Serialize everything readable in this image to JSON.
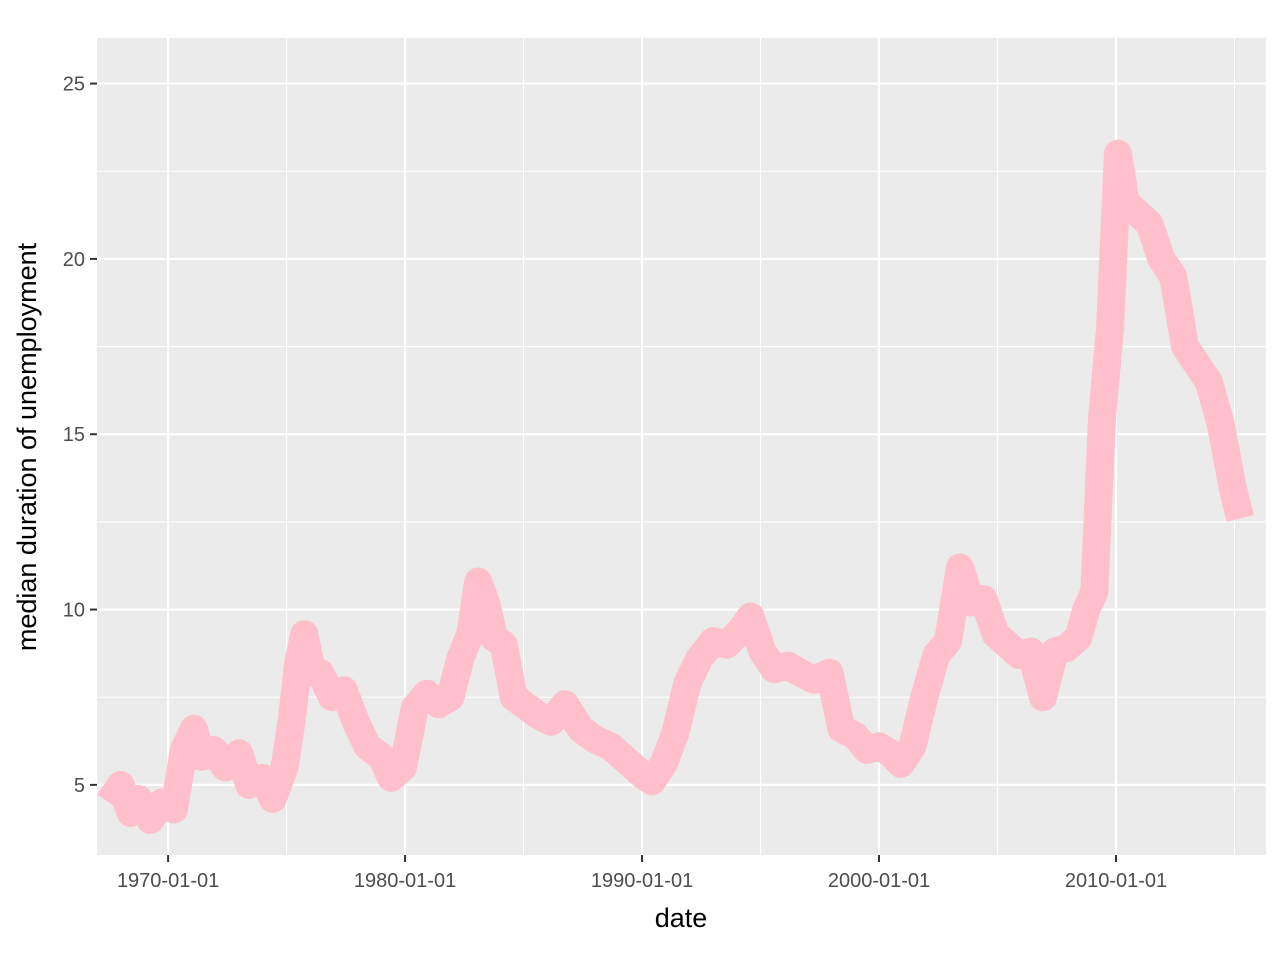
{
  "chart_data": {
    "type": "line",
    "xlabel": "date",
    "ylabel": "median duration of unemployment",
    "x_ticks": [
      "1970-01-01",
      "1980-01-01",
      "1990-01-01",
      "2000-01-01",
      "2010-01-01"
    ],
    "y_ticks": [
      "5",
      "10",
      "15",
      "20",
      "25"
    ],
    "xlim": [
      "1967-01-01",
      "2016-05-01"
    ],
    "ylim": [
      3,
      26.3
    ],
    "grid": true,
    "panel_background": "#ebebeb",
    "grid_color": "#ffffff",
    "line_color": "#ffc0cb",
    "series": [
      {
        "x": [
          "1967-07-01",
          "1968-01-01",
          "1968-06-01",
          "1968-10-01",
          "1969-04-01",
          "1969-10-01",
          "1970-04-01",
          "1970-09-01",
          "1971-02-01",
          "1971-06-01",
          "1971-12-01",
          "1972-06-01",
          "1973-01-01",
          "1973-06-01",
          "1974-01-01",
          "1974-06-01",
          "1974-12-01",
          "1975-04-01",
          "1975-07-01",
          "1975-10-01",
          "1976-02-01",
          "1976-06-01",
          "1976-12-01",
          "1977-06-01",
          "1977-12-01",
          "1978-06-01",
          "1979-01-01",
          "1979-06-01",
          "1979-12-01",
          "1980-06-01",
          "1980-12-01",
          "1981-06-01",
          "1981-12-01",
          "1982-05-01",
          "1982-10-01",
          "1983-02-01",
          "1983-06-01",
          "1983-10-01",
          "1984-03-01",
          "1984-08-01",
          "1985-01-01",
          "1985-08-01",
          "1986-03-01",
          "1986-10-01",
          "1987-06-01",
          "1988-01-01",
          "1988-09-01",
          "1989-05-01",
          "1990-01-01",
          "1990-06-01",
          "1990-12-01",
          "1991-06-01",
          "1991-12-01",
          "1992-06-01",
          "1993-01-01",
          "1993-08-01",
          "1994-03-01",
          "1994-08-01",
          "1995-02-01",
          "1995-08-01",
          "1996-03-01",
          "1996-09-01",
          "1997-04-01",
          "1997-12-01",
          "1998-06-01",
          "1999-01-01",
          "1999-07-01",
          "2000-01-01",
          "2000-07-01",
          "2000-12-01",
          "2001-06-01",
          "2001-12-01",
          "2002-06-01",
          "2002-12-01",
          "2003-06-01",
          "2003-12-01",
          "2004-06-01",
          "2004-12-01",
          "2005-06-01",
          "2005-12-01",
          "2006-06-01",
          "2006-12-01",
          "2007-06-01",
          "2007-12-01",
          "2008-06-01",
          "2008-10-01",
          "2009-02-01",
          "2009-06-01",
          "2009-10-01",
          "2010-02-01",
          "2010-06-01",
          "2010-12-01",
          "2011-06-01",
          "2011-12-01",
          "2012-06-01",
          "2012-12-01",
          "2013-06-01",
          "2013-12-01",
          "2014-06-01",
          "2014-12-01",
          "2015-04-01"
        ],
        "y": [
          4.5,
          5.0,
          4.2,
          4.6,
          4.0,
          4.5,
          4.3,
          6.0,
          6.6,
          5.8,
          6.0,
          5.5,
          5.9,
          5.0,
          5.2,
          4.6,
          5.5,
          7.0,
          8.5,
          9.3,
          8.2,
          8.2,
          7.5,
          7.7,
          6.8,
          6.1,
          5.8,
          5.2,
          5.5,
          7.2,
          7.6,
          7.3,
          7.5,
          8.6,
          9.3,
          10.8,
          10.2,
          9.2,
          9.0,
          7.5,
          7.3,
          7.0,
          6.8,
          7.3,
          6.6,
          6.3,
          6.1,
          5.7,
          5.3,
          5.1,
          5.6,
          6.5,
          7.9,
          8.6,
          9.1,
          9.0,
          9.4,
          9.8,
          8.8,
          8.3,
          8.4,
          8.2,
          8.0,
          8.2,
          6.6,
          6.4,
          6.0,
          6.1,
          5.9,
          5.6,
          6.1,
          7.5,
          8.7,
          9.1,
          11.2,
          10.2,
          10.3,
          9.3,
          9.0,
          8.7,
          8.8,
          7.5,
          8.8,
          8.9,
          9.2,
          10.0,
          10.5,
          15.5,
          18.0,
          23.0,
          21.6,
          21.3,
          21.0,
          20.0,
          19.5,
          17.5,
          17.0,
          16.5,
          15.3,
          13.5,
          12.6
        ]
      }
    ]
  }
}
